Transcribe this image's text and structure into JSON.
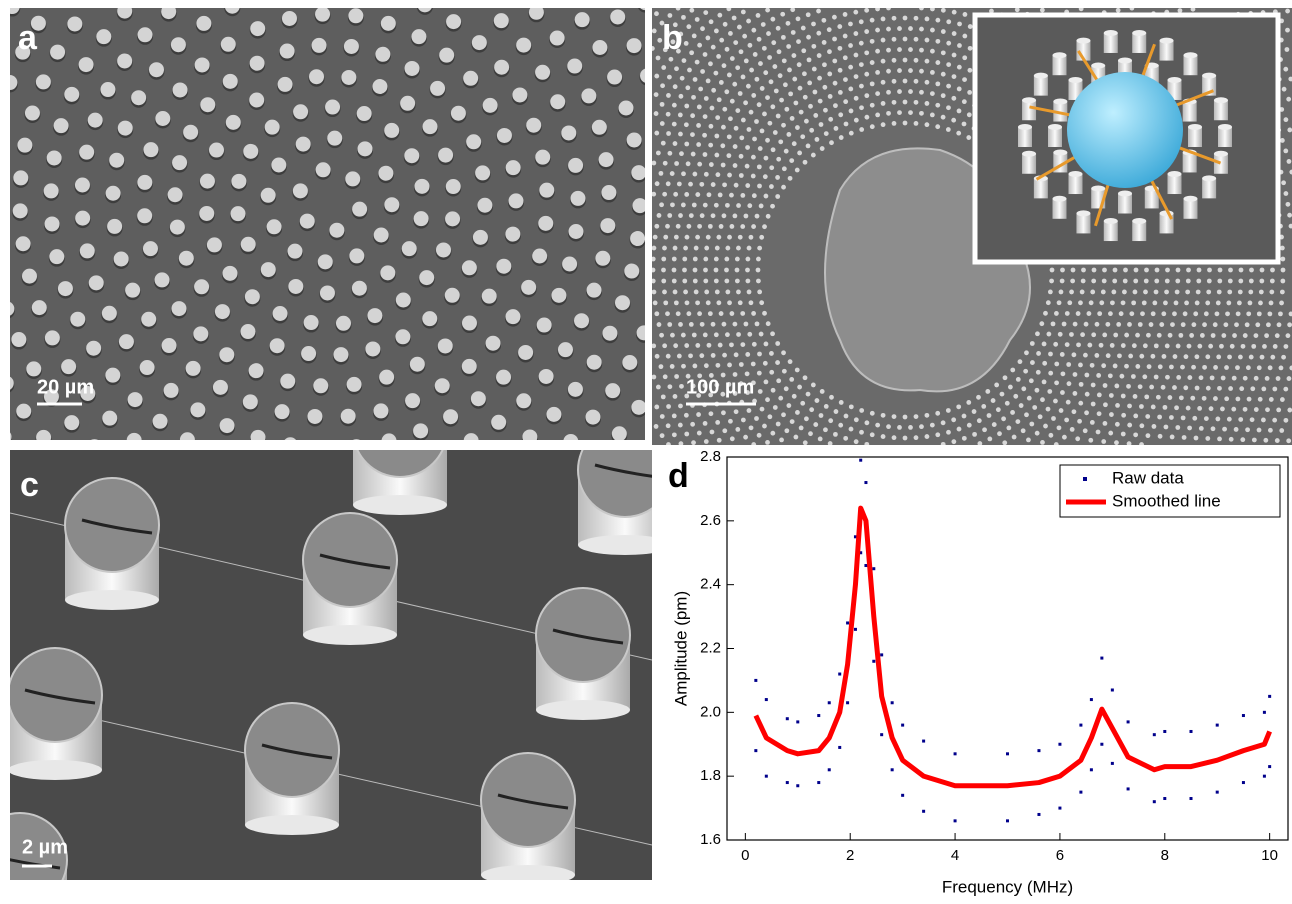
{
  "panels": {
    "a": {
      "label": "a",
      "scale_bar": "20 µm"
    },
    "b": {
      "label": "b",
      "scale_bar": "100 µm"
    },
    "c": {
      "label": "c",
      "scale_bar": "2 µm"
    },
    "d": {
      "label": "d"
    }
  },
  "chart_data": {
    "type": "line",
    "x_label": "Frequency (MHz)",
    "y_label": "Amplitude (pm)",
    "xlim": [
      -0.35,
      10.35
    ],
    "xticks": [
      0,
      2,
      4,
      6,
      8,
      10
    ],
    "ylim": [
      1.6,
      2.8
    ],
    "yticks": [
      1.6,
      1.8,
      {
        "value": 2,
        "label": "2.0"
      },
      2.2,
      2.4,
      2.6,
      2.8
    ],
    "legend": "upper right",
    "series": [
      {
        "name": "Raw data",
        "type": "scatter",
        "color": "#00008b",
        "x": [
          0.2,
          0.2,
          0.4,
          0.4,
          0.8,
          0.8,
          1.0,
          1.0,
          1.4,
          1.4,
          1.6,
          1.6,
          1.8,
          1.8,
          1.95,
          1.95,
          2.1,
          2.1,
          2.2,
          2.2,
          2.3,
          2.3,
          2.45,
          2.45,
          2.6,
          2.6,
          2.8,
          2.8,
          3.0,
          3.0,
          3.4,
          3.4,
          4.0,
          4.0,
          5.0,
          5.0,
          5.6,
          5.6,
          6.0,
          6.0,
          6.4,
          6.4,
          6.6,
          6.6,
          6.8,
          6.8,
          7.0,
          7.0,
          7.3,
          7.3,
          7.8,
          7.8,
          8.0,
          8.0,
          8.5,
          8.5,
          9.0,
          9.0,
          9.5,
          9.5,
          9.9,
          9.9,
          10.0,
          10.0
        ],
        "values": [
          2.1,
          1.88,
          2.04,
          1.8,
          1.98,
          1.78,
          1.97,
          1.77,
          1.99,
          1.78,
          2.03,
          1.82,
          2.12,
          1.89,
          2.28,
          2.03,
          2.55,
          2.26,
          2.79,
          2.5,
          2.72,
          2.46,
          2.45,
          2.16,
          2.18,
          1.93,
          2.03,
          1.82,
          1.96,
          1.74,
          1.91,
          1.69,
          1.87,
          1.66,
          1.87,
          1.66,
          1.88,
          1.68,
          1.9,
          1.7,
          1.96,
          1.75,
          2.04,
          1.82,
          2.17,
          1.9,
          2.07,
          1.84,
          1.97,
          1.76,
          1.93,
          1.72,
          1.94,
          1.73,
          1.94,
          1.73,
          1.96,
          1.75,
          1.99,
          1.78,
          2.0,
          1.8,
          2.05,
          1.83
        ]
      },
      {
        "name": "Smoothed line",
        "type": "line",
        "color": "#ff0000",
        "x": [
          0.2,
          0.4,
          0.8,
          1.0,
          1.4,
          1.6,
          1.8,
          1.95,
          2.1,
          2.2,
          2.3,
          2.45,
          2.6,
          2.8,
          3.0,
          3.4,
          4.0,
          5.0,
          5.6,
          6.0,
          6.4,
          6.6,
          6.8,
          7.0,
          7.3,
          7.8,
          8.0,
          8.5,
          9.0,
          9.5,
          9.9,
          10.0
        ],
        "values": [
          1.99,
          1.92,
          1.88,
          1.87,
          1.88,
          1.92,
          2.0,
          2.15,
          2.4,
          2.64,
          2.6,
          2.3,
          2.05,
          1.92,
          1.85,
          1.8,
          1.77,
          1.77,
          1.78,
          1.8,
          1.85,
          1.92,
          2.01,
          1.95,
          1.86,
          1.82,
          1.83,
          1.83,
          1.85,
          1.88,
          1.9,
          1.94
        ]
      }
    ]
  }
}
